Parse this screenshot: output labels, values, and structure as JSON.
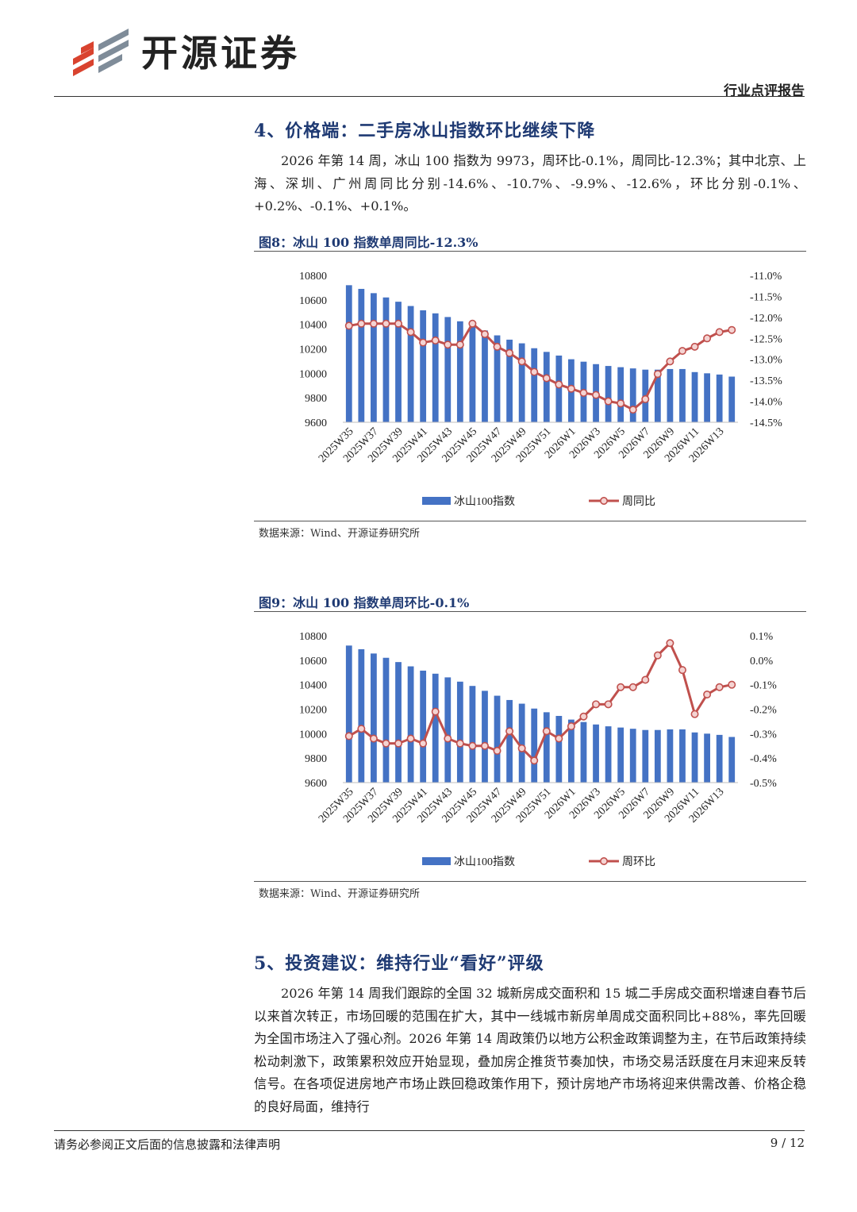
{
  "header": {
    "brand": "开源证券",
    "report_type": "行业点评报告"
  },
  "section4": {
    "title": "4、价格端：二手房冰山指数环比继续下降",
    "paragraph": "2026 年第 14 周，冰山 100 指数为 9973，周环比-0.1%，周同比-12.3%；其中北京、上海、深圳、广州周同比分别-14.6%、-10.7%、-9.9%、-12.6%，环比分别-0.1%、+0.2%、-0.1%、+0.1%。"
  },
  "figure8": {
    "title": "图8：冰山 100 指数单周同比-12.3%",
    "source": "数据来源：Wind、开源证券研究所"
  },
  "figure9": {
    "title": "图9：冰山 100 指数单周环比-0.1%",
    "source": "数据来源：Wind、开源证券研究所"
  },
  "section5": {
    "title": "5、投资建议：维持行业“看好”评级",
    "paragraph": "2026 年第 14 周我们跟踪的全国 32 城新房成交面积和 15 城二手房成交面积增速自春节后以来首次转正，市场回暖的范围在扩大，其中一线城市新房单周成交面积同比+88%，率先回暖为全国市场注入了强心剂。2026 年第 14 周政策仍以地方公积金政策调整为主，在节后政策持续松动刺激下，政策累积效应开始显现，叠加房企推货节奏加快，市场交易活跃度在月末迎来反转信号。在各项促进房地产市场止跌回稳政策作用下，预计房地产市场将迎来供需改善、价格企稳的良好局面，维持行"
  },
  "footer": {
    "disclaimer": "请务必参阅正文后面的信息披露和法律声明",
    "page": "9 / 12"
  },
  "colors": {
    "bar": "#4472c4",
    "line": "#c0504d",
    "title": "#1f3a73"
  },
  "chart_data": [
    {
      "type": "bar+line",
      "title": "图8：冰山 100 指数单周同比-12.3%",
      "categories": [
        "2025W35",
        "2025W36",
        "2025W37",
        "2025W38",
        "2025W39",
        "2025W40",
        "2025W41",
        "2025W42",
        "2025W43",
        "2025W44",
        "2025W45",
        "2025W46",
        "2025W47",
        "2025W48",
        "2025W49",
        "2025W50",
        "2025W51",
        "2025W52",
        "2026W1",
        "2026W2",
        "2026W3",
        "2026W4",
        "2026W5",
        "2026W6",
        "2026W7",
        "2026W8",
        "2026W9",
        "2026W10",
        "2026W11",
        "2026W12",
        "2026W13",
        "2026W14"
      ],
      "tick_labels": [
        "2025W35",
        "2025W37",
        "2025W39",
        "2025W41",
        "2025W43",
        "2025W45",
        "2025W47",
        "2025W49",
        "2025W51",
        "2026W1",
        "2026W3",
        "2026W5",
        "2026W7",
        "2026W9",
        "2026W11",
        "2026W13"
      ],
      "series": [
        {
          "name": "冰山100指数",
          "axis": "left",
          "type": "bar",
          "values": [
            10720,
            10690,
            10655,
            10620,
            10585,
            10550,
            10515,
            10490,
            10460,
            10425,
            10390,
            10350,
            10310,
            10275,
            10245,
            10205,
            10175,
            10145,
            10115,
            10095,
            10075,
            10060,
            10050,
            10040,
            10030,
            10030,
            10035,
            10035,
            10010,
            10000,
            9990,
            9973
          ]
        },
        {
          "name": "周同比",
          "axis": "right",
          "type": "line",
          "unit": "%",
          "values": [
            -12.2,
            -12.15,
            -12.15,
            -12.15,
            -12.15,
            -12.35,
            -12.6,
            -12.55,
            -12.65,
            -12.65,
            -12.15,
            -12.4,
            -12.7,
            -12.85,
            -13.05,
            -13.3,
            -13.45,
            -13.6,
            -13.7,
            -13.8,
            -13.85,
            -14.0,
            -14.05,
            -14.2,
            -13.95,
            -13.35,
            -13.05,
            -12.8,
            -12.7,
            -12.5,
            -12.35,
            -12.3
          ]
        }
      ],
      "ylim_left": [
        9600,
        10800
      ],
      "yticks_left": [
        9600,
        9800,
        10000,
        10200,
        10400,
        10600,
        10800
      ],
      "ylim_right": [
        -14.5,
        -11.0
      ],
      "yticks_right": [
        "-14.5%",
        "-14.0%",
        "-13.5%",
        "-13.0%",
        "-12.5%",
        "-12.0%",
        "-11.5%",
        "-11.0%"
      ],
      "legend": [
        "冰山100指数",
        "周同比"
      ],
      "legend_position": "bottom"
    },
    {
      "type": "bar+line",
      "title": "图9：冰山 100 指数单周环比-0.1%",
      "categories": [
        "2025W35",
        "2025W36",
        "2025W37",
        "2025W38",
        "2025W39",
        "2025W40",
        "2025W41",
        "2025W42",
        "2025W43",
        "2025W44",
        "2025W45",
        "2025W46",
        "2025W47",
        "2025W48",
        "2025W49",
        "2025W50",
        "2025W51",
        "2025W52",
        "2026W1",
        "2026W2",
        "2026W3",
        "2026W4",
        "2026W5",
        "2026W6",
        "2026W7",
        "2026W8",
        "2026W9",
        "2026W10",
        "2026W11",
        "2026W12",
        "2026W13",
        "2026W14"
      ],
      "tick_labels": [
        "2025W35",
        "2025W37",
        "2025W39",
        "2025W41",
        "2025W43",
        "2025W45",
        "2025W47",
        "2025W49",
        "2025W51",
        "2026W1",
        "2026W3",
        "2026W5",
        "2026W7",
        "2026W9",
        "2026W11",
        "2026W13"
      ],
      "series": [
        {
          "name": "冰山100指数",
          "axis": "left",
          "type": "bar",
          "values": [
            10720,
            10690,
            10655,
            10620,
            10585,
            10550,
            10515,
            10490,
            10460,
            10425,
            10390,
            10350,
            10310,
            10275,
            10245,
            10205,
            10175,
            10145,
            10115,
            10095,
            10075,
            10060,
            10050,
            10040,
            10030,
            10030,
            10035,
            10035,
            10010,
            10000,
            9990,
            9973
          ]
        },
        {
          "name": "周环比",
          "axis": "right",
          "type": "line",
          "unit": "%",
          "values": [
            -0.31,
            -0.28,
            -0.32,
            -0.34,
            -0.34,
            -0.32,
            -0.34,
            -0.21,
            -0.32,
            -0.34,
            -0.35,
            -0.35,
            -0.37,
            -0.29,
            -0.36,
            -0.41,
            -0.29,
            -0.32,
            -0.27,
            -0.23,
            -0.18,
            -0.18,
            -0.11,
            -0.11,
            -0.08,
            0.02,
            0.07,
            -0.04,
            -0.22,
            -0.14,
            -0.11,
            -0.1
          ]
        }
      ],
      "ylim_left": [
        9600,
        10800
      ],
      "yticks_left": [
        9600,
        9800,
        10000,
        10200,
        10400,
        10600,
        10800
      ],
      "ylim_right": [
        -0.5,
        0.1
      ],
      "yticks_right": [
        "-0.5%",
        "-0.4%",
        "-0.3%",
        "-0.2%",
        "-0.1%",
        "0.0%",
        "0.1%"
      ],
      "legend": [
        "冰山100指数",
        "周环比"
      ],
      "legend_position": "bottom"
    }
  ]
}
